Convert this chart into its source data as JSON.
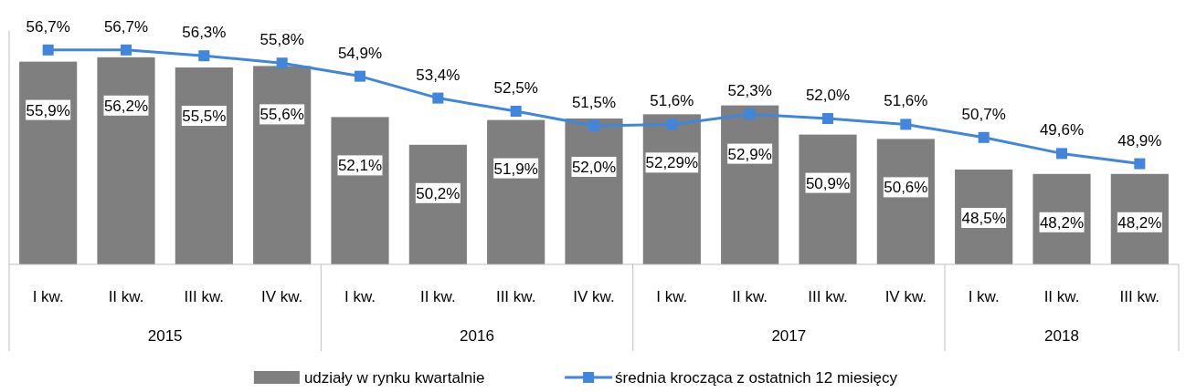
{
  "chart_data": {
    "type": "bar",
    "categories": [
      "I kw.",
      "II kw.",
      "III kw.",
      "IV kw.",
      "I kw.",
      "II kw.",
      "III kw.",
      "IV kw.",
      "I kw.",
      "II kw.",
      "III kw.",
      "IV kw.",
      "I kw.",
      "II kw.",
      "III kw."
    ],
    "annotations": [
      "2015",
      "2016",
      "2017",
      "2018"
    ],
    "ylim": [
      42,
      58
    ],
    "tick_labels": "x",
    "legend": "bottom",
    "marker": "square",
    "series": [
      {
        "name": "udziały w rynku kwartalnie",
        "color": "#7f7f7f",
        "values": [
          55.9,
          56.2,
          55.5,
          55.6,
          52.1,
          50.2,
          51.9,
          52.0,
          52.29,
          52.9,
          50.9,
          50.6,
          48.5,
          48.2,
          48.2
        ],
        "value_labels": [
          "55,9%",
          "56,2%",
          "55,5%",
          "55,6%",
          "52,1%",
          "50,2%",
          "51,9%",
          "52,0%",
          "52,29%",
          "52,9%",
          "50,9%",
          "50,6%",
          "48,5%",
          "48,2%",
          "48,2%"
        ]
      },
      {
        "name": "średnia krocząca z ostatnich 12 miesięcy",
        "type": "line",
        "color": "#3f86dc",
        "values": [
          56.7,
          56.7,
          56.3,
          55.8,
          54.9,
          53.4,
          52.5,
          51.5,
          51.6,
          52.3,
          52.0,
          51.6,
          50.7,
          49.6,
          48.9
        ],
        "value_labels": [
          "56,7%",
          "56,7%",
          "56,3%",
          "55,8%",
          "54,9%",
          "53,4%",
          "52,5%",
          "51,5%",
          "51,6%",
          "52,3%",
          "52,0%",
          "51,6%",
          "50,7%",
          "49,6%",
          "48,9%"
        ]
      }
    ]
  }
}
